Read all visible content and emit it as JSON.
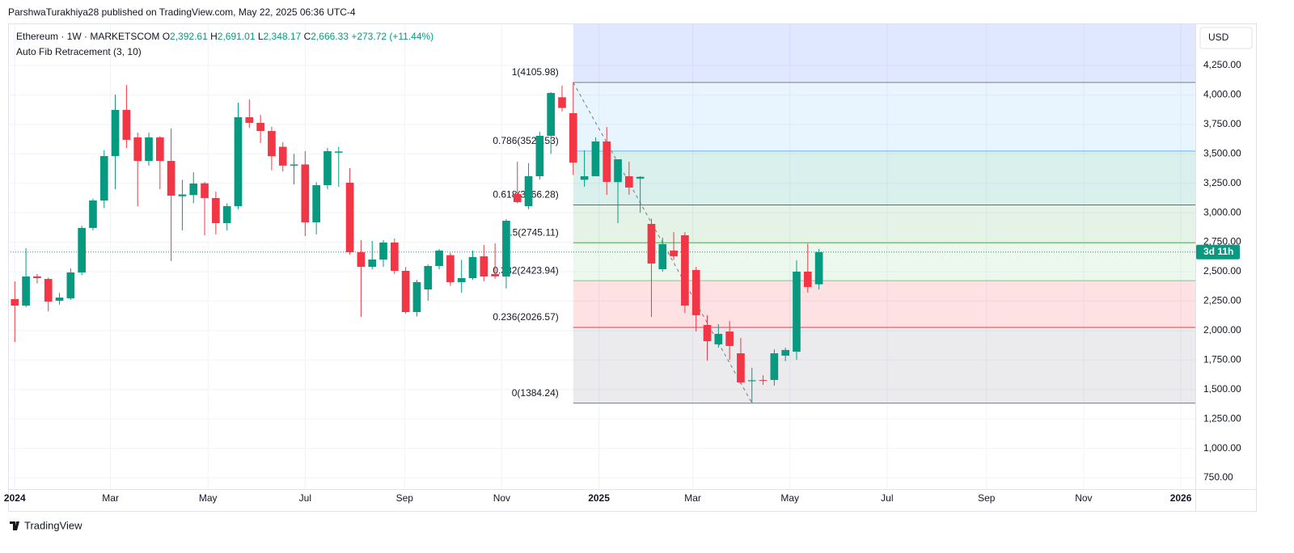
{
  "header": {
    "publisher": "ParshwaTurakhiya28 published on TradingView.com, May 22, 2025 06:36 UTC-4",
    "footer": "TradingView"
  },
  "chart_data": {
    "type": "candlestick",
    "symbol": "Ethereum · 1W · MARKETSCOM",
    "ohlc_legend": [
      {
        "key": "O",
        "value": "2,392.61"
      },
      {
        "key": "H",
        "value": "2,691.01"
      },
      {
        "key": "L",
        "value": "2,348.17"
      },
      {
        "key": "C",
        "value": "2,666.33"
      }
    ],
    "change": "+273.72 (+11.44%)",
    "indicator": "Auto Fib Retracement (3, 10)",
    "currency": "USD",
    "countdown": "3d 11h",
    "up_color": "#089981",
    "down_color": "#f23645",
    "x": [
      0,
      1,
      2,
      3,
      4,
      5,
      6,
      7,
      8,
      9,
      10,
      11,
      12,
      13,
      14,
      15,
      16,
      17,
      18,
      19,
      20,
      21,
      22,
      23,
      24,
      25,
      26,
      27,
      28,
      29,
      30,
      31,
      32,
      33,
      34,
      35,
      36,
      37,
      38,
      39,
      40,
      41,
      42,
      43,
      44,
      45,
      46,
      47,
      48,
      49,
      50,
      51,
      52,
      53,
      54,
      55,
      56,
      57,
      58,
      59,
      60,
      61,
      62,
      63,
      64,
      65,
      66,
      67,
      68,
      69,
      70,
      71,
      72
    ],
    "open": [
      2267,
      2212,
      2460,
      2438,
      2253,
      2274,
      2493,
      2871,
      3104,
      3481,
      3873,
      3640,
      3440,
      3640,
      3440,
      3140,
      3150,
      3250,
      3125,
      2912,
      3056,
      3811,
      3763,
      3694,
      3560,
      3400,
      3410,
      2919,
      3234,
      3510,
      3255,
      2665,
      2541,
      2603,
      2747,
      2507,
      2157,
      2349,
      2548,
      2640,
      2411,
      2445,
      2630,
      2480,
      2459,
      3159,
      3056,
      3310,
      3653,
      3980,
      3845,
      3280,
      3310,
      3605,
      3260,
      3310,
      3290,
      2905,
      2521,
      2679,
      2809,
      2514,
      2047,
      1883,
      1992,
      1807,
      1570,
      1580,
      1581,
      1787,
      1821,
      2500,
      2392.61
    ],
    "high": [
      2418,
      2699,
      2480,
      2450,
      2320,
      2528,
      2890,
      3120,
      3530,
      4003,
      4085,
      3680,
      3680,
      3650,
      3715,
      3280,
      3344,
      3262,
      3180,
      3080,
      3934,
      3962,
      3830,
      3730,
      3600,
      3500,
      3523,
      3260,
      3550,
      3560,
      3378,
      2768,
      2761,
      2768,
      2781,
      2540,
      2430,
      2560,
      2693,
      2660,
      2600,
      2679,
      2727,
      2740,
      2946,
      3433,
      3420,
      3688,
      4024,
      4080,
      4105.98,
      3530,
      3640,
      3728,
      3454,
      3433,
      3310,
      2950,
      2788,
      2836,
      2836,
      2540,
      2130,
      2054,
      2082,
      1937,
      1684,
      1620,
      1841,
      1855,
      2596,
      2738,
      2691.01
    ],
    "low": [
      1903,
      2198,
      2400,
      2164,
      2220,
      2260,
      2470,
      2850,
      3040,
      3200,
      3550,
      3056,
      3400,
      3200,
      2590,
      2850,
      3080,
      2809,
      2816,
      2850,
      3030,
      3720,
      3591,
      3360,
      3350,
      3240,
      2802,
      2816,
      3200,
      3220,
      2644,
      2116,
      2520,
      2540,
      2480,
      2143,
      2120,
      2253,
      2520,
      2380,
      2322,
      2430,
      2420,
      2440,
      2357,
      3080,
      3030,
      3280,
      3500,
      3860,
      3320,
      3220,
      3310,
      3152,
      2912,
      3152,
      3000,
      2116,
      2500,
      2600,
      2150,
      1992,
      1745,
      1855,
      1752,
      1547,
      1384.24,
      1540,
      1533,
      1740,
      1752,
      2322,
      2348.17
    ],
    "close": [
      2212,
      2459,
      2445,
      2246,
      2280,
      2493,
      2871,
      3104,
      3481,
      3873,
      3619,
      3440,
      3640,
      3440,
      3145,
      3155,
      3248,
      3125,
      2912,
      3056,
      3811,
      3763,
      3694,
      3480,
      3400,
      3410,
      2919,
      3234,
      3523,
      3520,
      2665,
      2541,
      2603,
      2747,
      2507,
      2157,
      2411,
      2548,
      2679,
      2411,
      2445,
      2624,
      2459,
      2460,
      2932,
      3090,
      3310,
      3653,
      4017,
      3890,
      3426,
      3310,
      3605,
      3262,
      3454,
      3214,
      3305,
      2569,
      2734,
      2631,
      2212,
      2130,
      1910,
      1972,
      1869,
      1560,
      1578,
      1575,
      1807,
      1835,
      2500,
      2370,
      2666.33
    ],
    "fib_levels": [
      {
        "label": "1(4105.98)",
        "price": 4105.98,
        "color": "#787b86"
      },
      {
        "label": "0.786(3523.53)",
        "price": 3523.53,
        "color": "#64b5f6"
      },
      {
        "label": "0.618(3066.28)",
        "price": 3066.28,
        "color": "#089981"
      },
      {
        "label": "0.5(2745.11)",
        "price": 2745.11,
        "color": "#4caf50"
      },
      {
        "label": "0.382(2423.94)",
        "price": 2423.94,
        "color": "#81c784"
      },
      {
        "label": "0.236(2026.57)",
        "price": 2026.57,
        "color": "#f23645"
      },
      {
        "label": "0(1384.24)",
        "price": 1384.24,
        "color": "#787b86"
      }
    ],
    "xlim": [
      -0.6,
      105.7
    ],
    "xticks": [
      {
        "value": 0,
        "label": "2024"
      },
      {
        "value": 8.57,
        "label": "Mar"
      },
      {
        "value": 17.3,
        "label": "May"
      },
      {
        "value": 26,
        "label": "Jul"
      },
      {
        "value": 34.9,
        "label": "Sep"
      },
      {
        "value": 43.6,
        "label": "Nov"
      },
      {
        "value": 52.3,
        "label": "2025"
      },
      {
        "value": 60.7,
        "label": "Mar"
      },
      {
        "value": 69.4,
        "label": "May"
      },
      {
        "value": 78.1,
        "label": "Jul"
      },
      {
        "value": 87,
        "label": "Sep"
      },
      {
        "value": 95.7,
        "label": "Nov"
      },
      {
        "value": 104.4,
        "label": "2026"
      }
    ],
    "ylim": [
      654,
      4600
    ],
    "yticks": [
      {
        "value": 750,
        "label": "750.00"
      },
      {
        "value": 1000,
        "label": "1,000.00"
      },
      {
        "value": 1250,
        "label": "1,250.00"
      },
      {
        "value": 1500,
        "label": "1,500.00"
      },
      {
        "value": 1750,
        "label": "1,750.00"
      },
      {
        "value": 2000,
        "label": "2,000.00"
      },
      {
        "value": 2250,
        "label": "2,250.00"
      },
      {
        "value": 2500,
        "label": "2,500.00"
      },
      {
        "value": 2750,
        "label": "2,750.00"
      },
      {
        "value": 3000,
        "label": "3,000.00"
      },
      {
        "value": 3250,
        "label": "3,250.00"
      },
      {
        "value": 3500,
        "label": "3,500.00"
      },
      {
        "value": 3750,
        "label": "3,750.00"
      },
      {
        "value": 4000,
        "label": "4,000.00"
      },
      {
        "value": 4250,
        "label": "4,250.00"
      }
    ],
    "grid": true
  }
}
